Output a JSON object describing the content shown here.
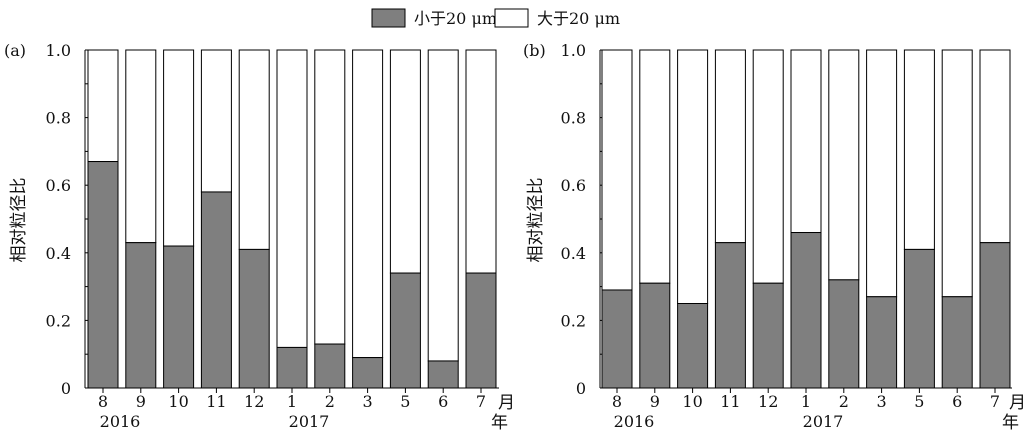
{
  "legend": {
    "placement": "top-center",
    "items": [
      {
        "label": "小于20 μm",
        "color": "#7f7f7f"
      },
      {
        "label": "大于20 μm",
        "color": "#ffffff"
      }
    ]
  },
  "chart_data": [
    {
      "type": "bar",
      "stacked": true,
      "normalized": true,
      "panel_label": "(a)",
      "ylabel": "相对粒径比",
      "xlabel_month_unit": "月",
      "xlabel_year_unit": "年",
      "ylim": [
        0,
        1.0
      ],
      "yticks": [
        "0",
        "0.2",
        "0.4",
        "0.6",
        "0.8",
        "1.0"
      ],
      "categories": [
        "8",
        "9",
        "10",
        "11",
        "12",
        "1",
        "2",
        "3",
        "5",
        "6",
        "7"
      ],
      "year_labels": [
        {
          "label": "2016",
          "at_category": 0
        },
        {
          "label": "2017",
          "at_category": 5
        }
      ],
      "series": [
        {
          "name": "小于20 μm",
          "color": "#7f7f7f",
          "values": [
            0.67,
            0.43,
            0.42,
            0.58,
            0.41,
            0.12,
            0.13,
            0.09,
            0.34,
            0.08,
            0.34
          ]
        },
        {
          "name": "大于20 μm",
          "color": "#ffffff",
          "values": [
            0.33,
            0.57,
            0.58,
            0.42,
            0.59,
            0.88,
            0.87,
            0.91,
            0.66,
            0.92,
            0.66
          ]
        }
      ],
      "grid": false
    },
    {
      "type": "bar",
      "stacked": true,
      "normalized": true,
      "panel_label": "(b)",
      "ylabel": "相对粒径比",
      "xlabel_month_unit": "月",
      "xlabel_year_unit": "年",
      "ylim": [
        0,
        1.0
      ],
      "yticks": [
        "0",
        "0.2",
        "0.4",
        "0.6",
        "0.8",
        "1.0"
      ],
      "categories": [
        "8",
        "9",
        "10",
        "11",
        "12",
        "1",
        "2",
        "3",
        "5",
        "6",
        "7"
      ],
      "year_labels": [
        {
          "label": "2016",
          "at_category": 0
        },
        {
          "label": "2017",
          "at_category": 5
        }
      ],
      "series": [
        {
          "name": "小于20 μm",
          "color": "#7f7f7f",
          "values": [
            0.29,
            0.31,
            0.25,
            0.43,
            0.31,
            0.46,
            0.32,
            0.27,
            0.41,
            0.27,
            0.43
          ]
        },
        {
          "name": "大于20 μm",
          "color": "#ffffff",
          "values": [
            0.71,
            0.69,
            0.75,
            0.57,
            0.69,
            0.54,
            0.68,
            0.73,
            0.59,
            0.73,
            0.57
          ]
        }
      ],
      "grid": false
    }
  ]
}
